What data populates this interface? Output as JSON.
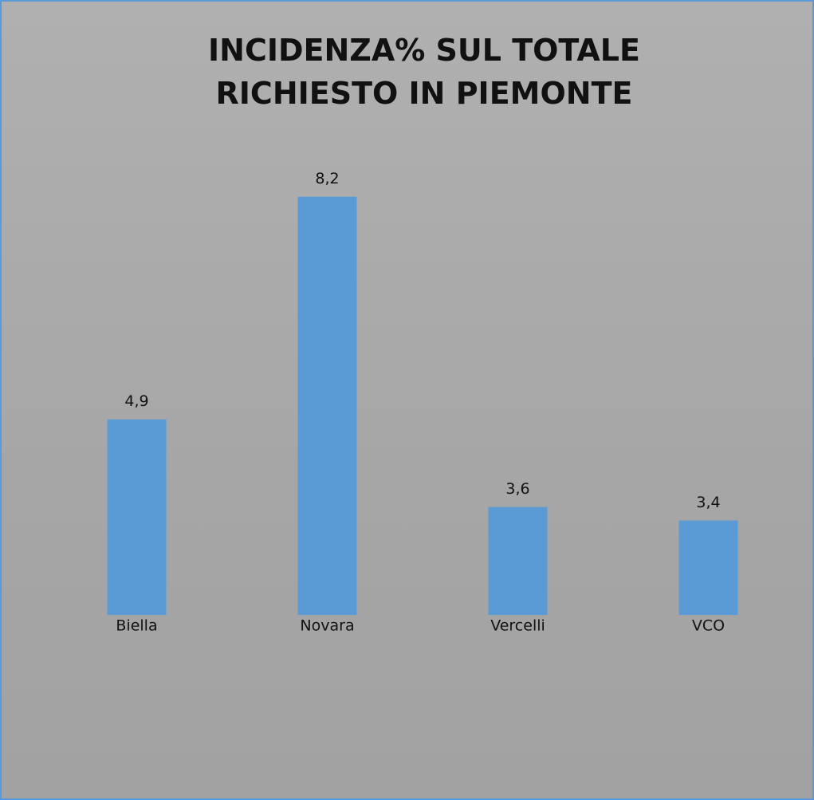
{
  "chart_data": {
    "type": "bar",
    "title": "INCIDENZA% SUL TOTALE RICHIESTO IN PIEMONTE",
    "categories": [
      "Biella",
      "Novara",
      "Vercelli",
      "VCO"
    ],
    "values": [
      4.9,
      8.2,
      3.6,
      3.4
    ],
    "value_labels": [
      "4,9",
      "8,2",
      "3,6",
      "3,4"
    ],
    "color": "#5b9bd5",
    "ylim": [
      2,
      9
    ]
  }
}
